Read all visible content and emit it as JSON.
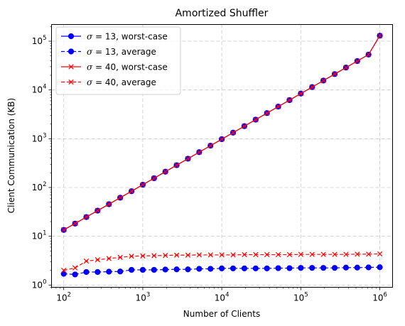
{
  "chart_data": {
    "type": "line",
    "title": "Amortized Shuffler",
    "xlabel": "Number of Clients",
    "ylabel": "Client Communication (KB)",
    "xscale": "log",
    "yscale": "log",
    "xlim": [
      70,
      1450000
    ],
    "ylim": [
      0.9,
      220000
    ],
    "grid": true,
    "legend_position": "upper-left",
    "x_ticks": [
      {
        "base": "10",
        "exp": "2"
      },
      {
        "base": "10",
        "exp": "3"
      },
      {
        "base": "10",
        "exp": "4"
      },
      {
        "base": "10",
        "exp": "5"
      },
      {
        "base": "10",
        "exp": "6"
      }
    ],
    "y_ticks": [
      {
        "base": "10",
        "exp": "0"
      },
      {
        "base": "10",
        "exp": "1"
      },
      {
        "base": "10",
        "exp": "2"
      },
      {
        "base": "10",
        "exp": "3"
      },
      {
        "base": "10",
        "exp": "4"
      },
      {
        "base": "10",
        "exp": "5"
      }
    ],
    "x": [
      100,
      139,
      193,
      268,
      373,
      518,
      720,
      1000,
      1389,
      1931,
      2683,
      3728,
      5179,
      7197,
      10000,
      13895,
      19307,
      26827,
      37276,
      51795,
      71969,
      100000,
      138950,
      193070,
      268270,
      372760,
      517950,
      719690,
      1000000
    ],
    "series": [
      {
        "name": "σ = 13, worst-case",
        "legend_symbol": "σ",
        "legend_rest": " = 13, worst-case",
        "color": "#0000ff",
        "linestyle": "solid",
        "marker": "circle",
        "values": [
          13.5,
          18.2,
          24.8,
          33.6,
          45.5,
          61.8,
          84.0,
          114,
          155,
          211,
          287,
          390,
          530,
          721,
          980,
          1333,
          1812,
          2465,
          3352,
          4560,
          6200,
          8430,
          11460,
          15580,
          21180,
          28790,
          39130,
          53200,
          130000
        ]
      },
      {
        "name": "σ = 13, average",
        "legend_symbol": "σ",
        "legend_rest": " = 13, average",
        "color": "#0000ff",
        "linestyle": "dashed",
        "marker": "circle",
        "values": [
          1.7,
          1.65,
          1.85,
          1.85,
          1.88,
          1.9,
          2.05,
          2.05,
          2.05,
          2.08,
          2.1,
          2.1,
          2.15,
          2.15,
          2.2,
          2.2,
          2.2,
          2.2,
          2.2,
          2.22,
          2.22,
          2.25,
          2.25,
          2.25,
          2.25,
          2.28,
          2.28,
          2.3,
          2.32
        ]
      },
      {
        "name": "σ = 40, worst-case",
        "legend_symbol": "σ",
        "legend_rest": " = 40, worst-case",
        "color": "#ff0000",
        "linestyle": "solid",
        "marker": "x",
        "values": [
          13.6,
          18.3,
          24.9,
          33.7,
          45.6,
          61.9,
          84.1,
          114.2,
          155.2,
          211.2,
          287.2,
          390.2,
          530.3,
          721.3,
          980.5,
          1333.5,
          1812.5,
          2465.5,
          3352.5,
          4560.5,
          6200.5,
          8430.5,
          11460,
          15580,
          21180,
          28790,
          39130,
          53200,
          130000
        ]
      },
      {
        "name": "σ = 40, average",
        "legend_symbol": "σ",
        "legend_rest": " = 40, average",
        "color": "#ff0000",
        "linestyle": "dashed",
        "marker": "x",
        "values": [
          2.0,
          2.25,
          3.1,
          3.3,
          3.5,
          3.7,
          3.9,
          3.95,
          4.0,
          4.05,
          4.1,
          4.1,
          4.15,
          4.15,
          4.15,
          4.15,
          4.2,
          4.2,
          4.2,
          4.2,
          4.2,
          4.25,
          4.25,
          4.25,
          4.25,
          4.25,
          4.3,
          4.3,
          4.35
        ]
      }
    ]
  }
}
